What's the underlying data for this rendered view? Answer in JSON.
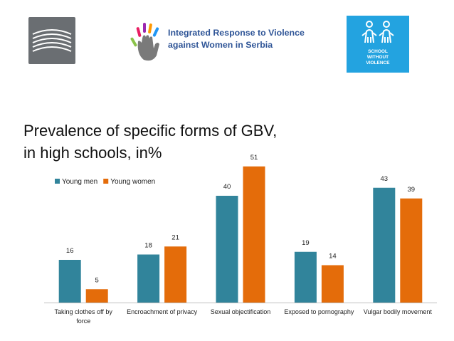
{
  "logos": {
    "left": "striped-square-logo",
    "middle": {
      "line1": "Integrated Response to Violence",
      "line2": "against Women in Serbia",
      "icon": "handprint-icon"
    },
    "right": {
      "line1": "SCHOOL",
      "line2": "WITHOUT",
      "line3": "VIOLENCE",
      "icon": "children-icon"
    }
  },
  "colors": {
    "young_men": "#31849b",
    "young_women": "#e46c0a",
    "brand_blue": "#23a3e0",
    "text_blue": "#2f5597"
  },
  "chart_data": {
    "type": "bar",
    "title": "Prevalence of specific forms of GBV, in high schools, in%",
    "title_lines": [
      "Prevalence of specific forms of GBV,",
      "in high schools, in%"
    ],
    "categories": [
      "Taking clothes off by force",
      "Encroachment of privacy",
      "Sexual objectification",
      "Exposed to pornography",
      "Vulgar bodily movement"
    ],
    "category_lines": [
      [
        "Taking clothes off by",
        "force"
      ],
      [
        "Encroachment of privacy"
      ],
      [
        "Sexual objectification"
      ],
      [
        "Exposed to pornography"
      ],
      [
        "Vulgar bodily movement"
      ]
    ],
    "series": [
      {
        "name": "Young men",
        "values": [
          16,
          18,
          40,
          19,
          43
        ]
      },
      {
        "name": "Young women",
        "values": [
          5,
          21,
          51,
          14,
          39
        ]
      }
    ],
    "ylim": [
      0,
      51
    ],
    "xlabel": "",
    "ylabel": "",
    "legend_position": "top-left",
    "grid": false
  }
}
